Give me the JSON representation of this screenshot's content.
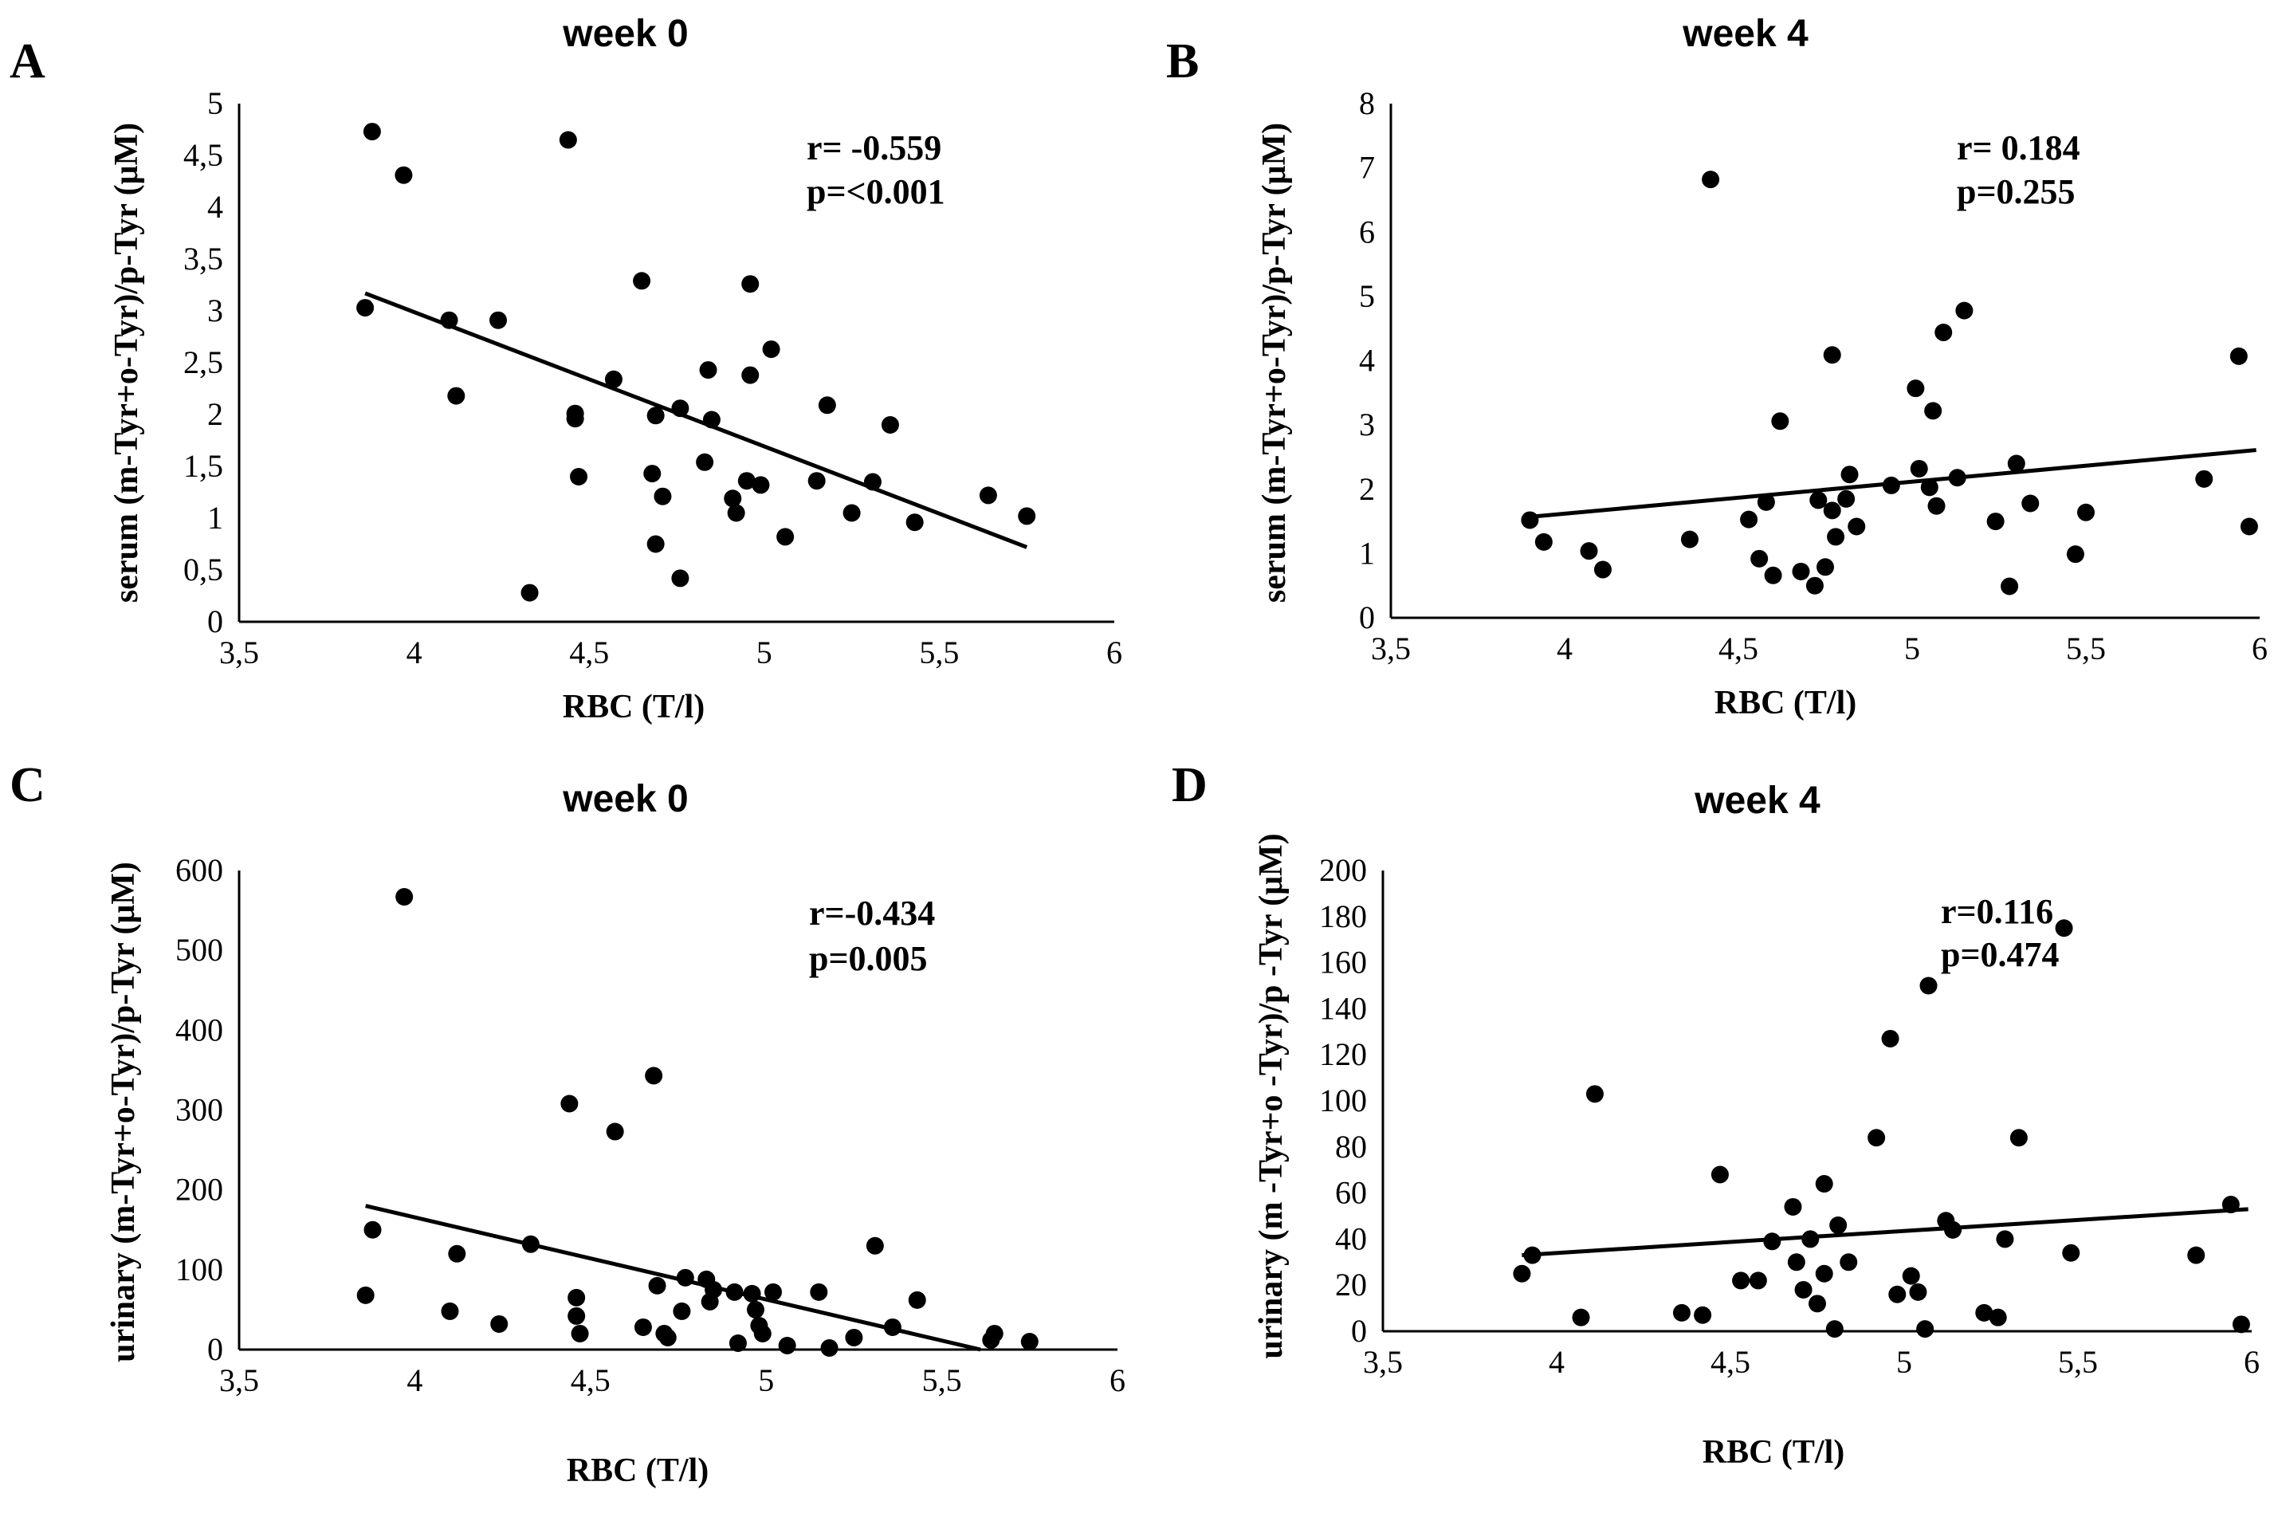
{
  "chart_data": [
    {
      "panel": "A",
      "type": "scatter",
      "title": "week 0",
      "xlabel": "RBC (T/l)",
      "ylabel": "serum (m-Tyr+o-Tyr)/p-Tyr (μM)",
      "xlim": [
        3.5,
        6
      ],
      "ylim": [
        0,
        5
      ],
      "x_ticks": [
        3.5,
        4,
        4.5,
        5,
        5.5,
        6
      ],
      "x_tick_labels": [
        "3,5",
        "4",
        "4,5",
        "5",
        "5,5",
        "6"
      ],
      "y_ticks": [
        0,
        0.5,
        1,
        1.5,
        2,
        2.5,
        3,
        3.5,
        4,
        4.5,
        5
      ],
      "y_tick_labels": [
        "0",
        "0,5",
        "1",
        "1,5",
        "2",
        "2,5",
        "3",
        "3,5",
        "4",
        "4,5",
        "5"
      ],
      "annotation": [
        "r= -0.559",
        "p=<0.001"
      ],
      "trendline": {
        "x": [
          3.86,
          5.75
        ],
        "y": [
          3.17,
          0.72
        ]
      },
      "points": {
        "x": [
          3.86,
          3.88,
          3.97,
          4.1,
          4.12,
          4.24,
          4.33,
          4.44,
          4.46,
          4.46,
          4.47,
          4.57,
          4.65,
          4.68,
          4.69,
          4.69,
          4.71,
          4.76,
          4.76,
          4.83,
          4.84,
          4.85,
          4.91,
          4.92,
          4.95,
          4.96,
          4.96,
          4.99,
          5.02,
          5.06,
          5.15,
          5.18,
          5.25,
          5.31,
          5.36,
          5.43,
          5.64,
          5.75
        ],
        "y": [
          3.03,
          4.73,
          4.31,
          2.91,
          2.18,
          2.91,
          0.28,
          4.65,
          2.01,
          1.96,
          1.4,
          2.34,
          3.29,
          1.43,
          1.99,
          0.75,
          1.21,
          2.06,
          0.42,
          1.54,
          2.43,
          1.95,
          1.19,
          1.05,
          1.36,
          3.26,
          2.38,
          1.32,
          2.63,
          0.82,
          1.36,
          2.09,
          1.05,
          1.35,
          1.9,
          0.96,
          1.22,
          1.02
        ]
      }
    },
    {
      "panel": "B",
      "type": "scatter",
      "title": "week 4",
      "xlabel": "RBC (T/l)",
      "ylabel": "serum (m-Tyr+o-Tyr)/p-Tyr (μM)",
      "xlim": [
        3.5,
        6
      ],
      "ylim": [
        0,
        8
      ],
      "x_ticks": [
        3.5,
        4,
        4.5,
        5,
        5.5,
        6
      ],
      "x_tick_labels": [
        "3,5",
        "4",
        "4,5",
        "5",
        "5,5",
        "6"
      ],
      "y_ticks": [
        0,
        1,
        2,
        3,
        4,
        5,
        6,
        7,
        8
      ],
      "y_tick_labels": [
        "0",
        "1",
        "2",
        "3",
        "4",
        "5",
        "6",
        "7",
        "8"
      ],
      "annotation": [
        "r= 0.184",
        "p=0.255"
      ],
      "trendline": {
        "x": [
          3.9,
          5.99
        ],
        "y": [
          1.57,
          2.61
        ]
      },
      "points": {
        "x": [
          3.9,
          3.94,
          4.07,
          4.11,
          4.36,
          4.42,
          4.53,
          4.56,
          4.58,
          4.6,
          4.62,
          4.68,
          4.72,
          4.73,
          4.75,
          4.77,
          4.77,
          4.78,
          4.81,
          4.82,
          4.84,
          4.94,
          5.01,
          5.02,
          5.05,
          5.06,
          5.07,
          5.09,
          5.13,
          5.15,
          5.24,
          5.28,
          5.3,
          5.34,
          5.47,
          5.5,
          5.84,
          5.94,
          5.97
        ],
        "y": [
          1.52,
          1.18,
          1.04,
          0.75,
          1.22,
          6.82,
          1.53,
          0.92,
          1.8,
          0.66,
          3.06,
          0.72,
          0.5,
          1.83,
          0.79,
          1.67,
          4.09,
          1.26,
          1.85,
          2.23,
          1.42,
          2.06,
          3.57,
          2.32,
          2.03,
          3.22,
          1.74,
          4.44,
          2.18,
          4.78,
          1.5,
          0.49,
          2.4,
          1.78,
          0.99,
          1.64,
          2.16,
          4.07,
          1.42
        ]
      }
    },
    {
      "panel": "C",
      "type": "scatter",
      "title": "week 0",
      "xlabel": "RBC (T/l)",
      "ylabel": "urinary (m-Tyr+o-Tyr)/p-Tyr (μM)",
      "xlim": [
        3.5,
        6
      ],
      "ylim": [
        0,
        600
      ],
      "x_ticks": [
        3.5,
        4,
        4.5,
        5,
        5.5,
        6
      ],
      "x_tick_labels": [
        "3,5",
        "4",
        "4,5",
        "5",
        "5,5",
        "6"
      ],
      "y_ticks": [
        0,
        100,
        200,
        300,
        400,
        500,
        600
      ],
      "y_tick_labels": [
        "0",
        "100",
        "200",
        "300",
        "400",
        "500",
        "600"
      ],
      "annotation": [
        "r=-0.434",
        "p=0.005"
      ],
      "trendline": {
        "x": [
          3.86,
          5.61
        ],
        "y": [
          180,
          0
        ]
      },
      "points": {
        "x": [
          3.86,
          3.88,
          3.97,
          4.1,
          4.12,
          4.24,
          4.33,
          4.44,
          4.46,
          4.46,
          4.47,
          4.57,
          4.65,
          4.68,
          4.69,
          4.71,
          4.72,
          4.76,
          4.77,
          4.83,
          4.84,
          4.85,
          4.91,
          4.92,
          4.96,
          4.97,
          4.98,
          4.99,
          5.02,
          5.06,
          5.15,
          5.18,
          5.25,
          5.31,
          5.36,
          5.43,
          5.64,
          5.65,
          5.75
        ],
        "y": [
          68,
          150,
          567,
          48,
          120,
          32,
          132,
          308,
          65,
          42,
          20,
          273,
          28,
          343,
          80,
          20,
          15,
          48,
          90,
          88,
          60,
          75,
          72,
          8,
          70,
          50,
          30,
          20,
          72,
          5,
          72,
          2,
          15,
          130,
          28,
          62,
          12,
          20,
          10
        ]
      }
    },
    {
      "panel": "D",
      "type": "scatter",
      "title": "week 4",
      "xlabel": "RBC (T/l)",
      "ylabel": "urinary (m -Tyr+o -Tyr)/p -Tyr (μM)",
      "xlim": [
        3.5,
        6
      ],
      "ylim": [
        0,
        200
      ],
      "x_ticks": [
        3.5,
        4,
        4.5,
        5,
        5.5,
        6
      ],
      "x_tick_labels": [
        "3,5",
        "4",
        "4,5",
        "5",
        "5,5",
        "6"
      ],
      "y_ticks": [
        0,
        20,
        40,
        60,
        80,
        100,
        120,
        140,
        160,
        180,
        200
      ],
      "y_tick_labels": [
        "0",
        "20",
        "40",
        "60",
        "80",
        "100",
        "120",
        "140",
        "160",
        "180",
        "200"
      ],
      "annotation": [
        "r=0.116",
        "p=0.474"
      ],
      "trendline": {
        "x": [
          3.9,
          5.99
        ],
        "y": [
          33,
          53
        ]
      },
      "points": {
        "x": [
          3.9,
          3.93,
          4.07,
          4.11,
          4.36,
          4.42,
          4.47,
          4.53,
          4.58,
          4.62,
          4.68,
          4.69,
          4.71,
          4.73,
          4.75,
          4.77,
          4.77,
          4.8,
          4.81,
          4.84,
          4.92,
          4.96,
          4.98,
          5.02,
          5.04,
          5.06,
          5.07,
          5.12,
          5.14,
          5.23,
          5.27,
          5.29,
          5.33,
          5.46,
          5.48,
          5.84,
          5.94,
          5.97
        ],
        "y": [
          25,
          33,
          6,
          103,
          8,
          7,
          68,
          22,
          22,
          39,
          54,
          30,
          18,
          40,
          12,
          25,
          64,
          1,
          46,
          30,
          84,
          127,
          16,
          24,
          17,
          1,
          150,
          48,
          44,
          8,
          6,
          40,
          84,
          175,
          34,
          33,
          55,
          3
        ]
      }
    }
  ]
}
